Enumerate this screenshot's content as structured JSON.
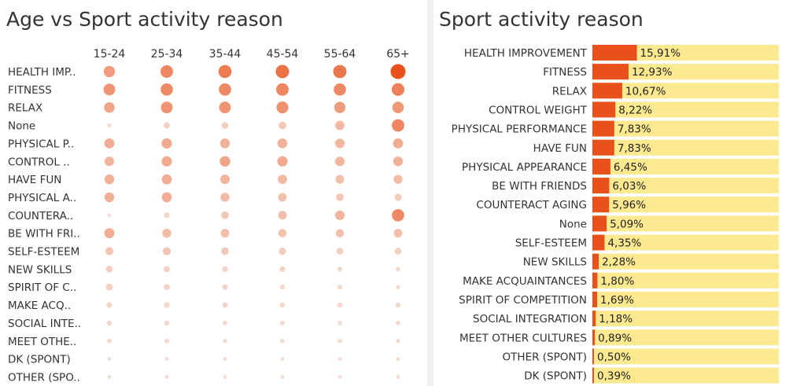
{
  "chart_data": [
    {
      "type": "scatter",
      "title": "Age vs Sport activity reason",
      "columns": [
        "15-24",
        "25-34",
        "35-44",
        "45-54",
        "55-64",
        "65+"
      ],
      "rows": [
        {
          "label": "HEALTH IMP..",
          "values": [
            2,
            2.6,
            2.9,
            3.1,
            3.0,
            4.0
          ]
        },
        {
          "label": "FITNESS",
          "values": [
            2.2,
            2.5,
            2.5,
            2.6,
            2.5,
            2.7
          ]
        },
        {
          "label": "RELAX",
          "values": [
            1.7,
            2.2,
            2.2,
            2.3,
            2.0,
            2.1
          ]
        },
        {
          "label": "None",
          "values": [
            0.1,
            0.4,
            0.5,
            0.7,
            1.2,
            2.6
          ]
        },
        {
          "label": "PHYSICAL P..",
          "values": [
            1.5,
            1.6,
            1.4,
            1.4,
            1.3,
            1.5
          ]
        },
        {
          "label": "CONTROL ..",
          "values": [
            1.3,
            1.6,
            1.7,
            1.6,
            1.3,
            1.4
          ]
        },
        {
          "label": "HAVE FUN",
          "values": [
            1.4,
            1.5,
            1.3,
            1.2,
            1.0,
            1.1
          ]
        },
        {
          "label": "PHYSICAL A..",
          "values": [
            1.4,
            1.5,
            1.1,
            1.0,
            0.7,
            0.6
          ]
        },
        {
          "label": "COUNTERA..",
          "values": [
            0.05,
            0.3,
            0.7,
            1.0,
            1.3,
            2.5
          ]
        },
        {
          "label": "BE WITH FRI..",
          "values": [
            1.5,
            1.1,
            1.0,
            0.9,
            0.9,
            1.0
          ]
        },
        {
          "label": "SELF-ESTEEM",
          "values": [
            0.8,
            0.8,
            0.7,
            0.6,
            0.5,
            0.5
          ]
        },
        {
          "label": "NEW SKILLS",
          "values": [
            0.5,
            0.4,
            0.3,
            0.3,
            0.2,
            0.15
          ]
        },
        {
          "label": "SPIRIT OF C..",
          "values": [
            0.5,
            0.35,
            0.25,
            0.2,
            0.15,
            0.1
          ]
        },
        {
          "label": "MAKE ACQ..",
          "values": [
            0.3,
            0.3,
            0.25,
            0.2,
            0.2,
            0.2
          ]
        },
        {
          "label": "SOCIAL INTE..",
          "values": [
            0.2,
            0.2,
            0.15,
            0.15,
            0.15,
            0.15
          ]
        },
        {
          "label": "MEET OTHE..",
          "values": [
            0.15,
            0.15,
            0.1,
            0.1,
            0.1,
            0.08
          ]
        },
        {
          "label": "DK (SPONT)",
          "values": [
            0.05,
            0.05,
            0.05,
            0.05,
            0.05,
            0.05
          ]
        },
        {
          "label": "OTHER (SPO..",
          "values": [
            0.05,
            0.05,
            0.05,
            0.05,
            0.05,
            0.05
          ]
        }
      ],
      "colors": {
        "low": "#f4ddd2",
        "high": "#e8511c"
      }
    },
    {
      "type": "bar",
      "title": "Sport activity reason",
      "categories": [
        "HEALTH IMPROVEMENT",
        "FITNESS",
        "RELAX",
        "CONTROL WEIGHT",
        "PHYSICAL PERFORMANCE",
        "HAVE FUN",
        "PHYSICAL APPEARANCE",
        "BE WITH FRIENDS",
        "COUNTERACT AGING",
        "None",
        "SELF-ESTEEM",
        "NEW SKILLS",
        "MAKE ACQUAINTANCES",
        "SPIRIT OF COMPETITION",
        "SOCIAL INTEGRATION",
        "MEET OTHER CULTURES",
        "OTHER (SPONT)",
        "DK (SPONT)"
      ],
      "values": [
        15.91,
        12.93,
        10.67,
        8.22,
        7.83,
        7.83,
        6.45,
        6.03,
        5.96,
        5.09,
        4.35,
        2.28,
        1.8,
        1.69,
        1.18,
        0.89,
        0.5,
        0.39
      ],
      "labels": [
        "15,91%",
        "12,93%",
        "10,67%",
        "8,22%",
        "7,83%",
        "7,83%",
        "6,45%",
        "6,03%",
        "5,96%",
        "5,09%",
        "4,35%",
        "2,28%",
        "1,80%",
        "1,69%",
        "1,18%",
        "0,89%",
        "0,50%",
        "0,39%"
      ],
      "xlim": [
        0,
        100
      ],
      "colors": {
        "bar": "#e8511c",
        "background": "#fde98f"
      }
    }
  ]
}
